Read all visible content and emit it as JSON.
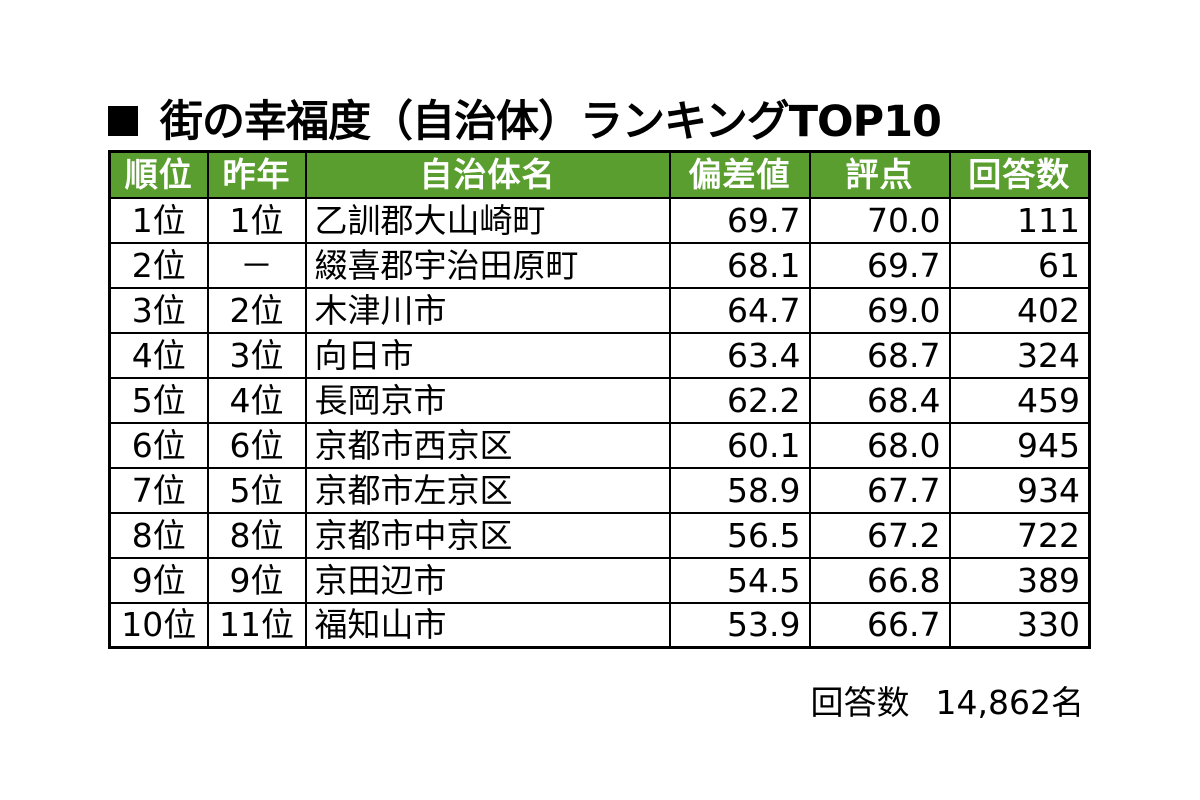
{
  "title": "街の幸福度（自治体）ランキングTOP10",
  "table": {
    "headers": [
      "順位",
      "昨年",
      "自治体名",
      "偏差値",
      "評点",
      "回答数"
    ],
    "rows": [
      [
        "1位",
        "1位",
        "乙訓郡大山崎町",
        "69.7",
        "70.0",
        "111"
      ],
      [
        "2位",
        "－",
        "綴喜郡宇治田原町",
        "68.1",
        "69.7",
        "61"
      ],
      [
        "3位",
        "2位",
        "木津川市",
        "64.7",
        "69.0",
        "402"
      ],
      [
        "4位",
        "3位",
        "向日市",
        "63.4",
        "68.7",
        "324"
      ],
      [
        "5位",
        "4位",
        "長岡京市",
        "62.2",
        "68.4",
        "459"
      ],
      [
        "6位",
        "6位",
        "京都市西京区",
        "60.1",
        "68.0",
        "945"
      ],
      [
        "7位",
        "5位",
        "京都市左京区",
        "58.9",
        "67.7",
        "934"
      ],
      [
        "8位",
        "8位",
        "京都市中京区",
        "56.5",
        "67.2",
        "722"
      ],
      [
        "9位",
        "9位",
        "京田辺市",
        "54.5",
        "66.8",
        "389"
      ],
      [
        "10位",
        "11位",
        "福知山市",
        "53.9",
        "66.7",
        "330"
      ]
    ]
  },
  "footer": {
    "label": "回答数",
    "value": "14,862名"
  },
  "colors": {
    "header_bg": "#5a9e2f",
    "header_text": "#ffffff"
  }
}
